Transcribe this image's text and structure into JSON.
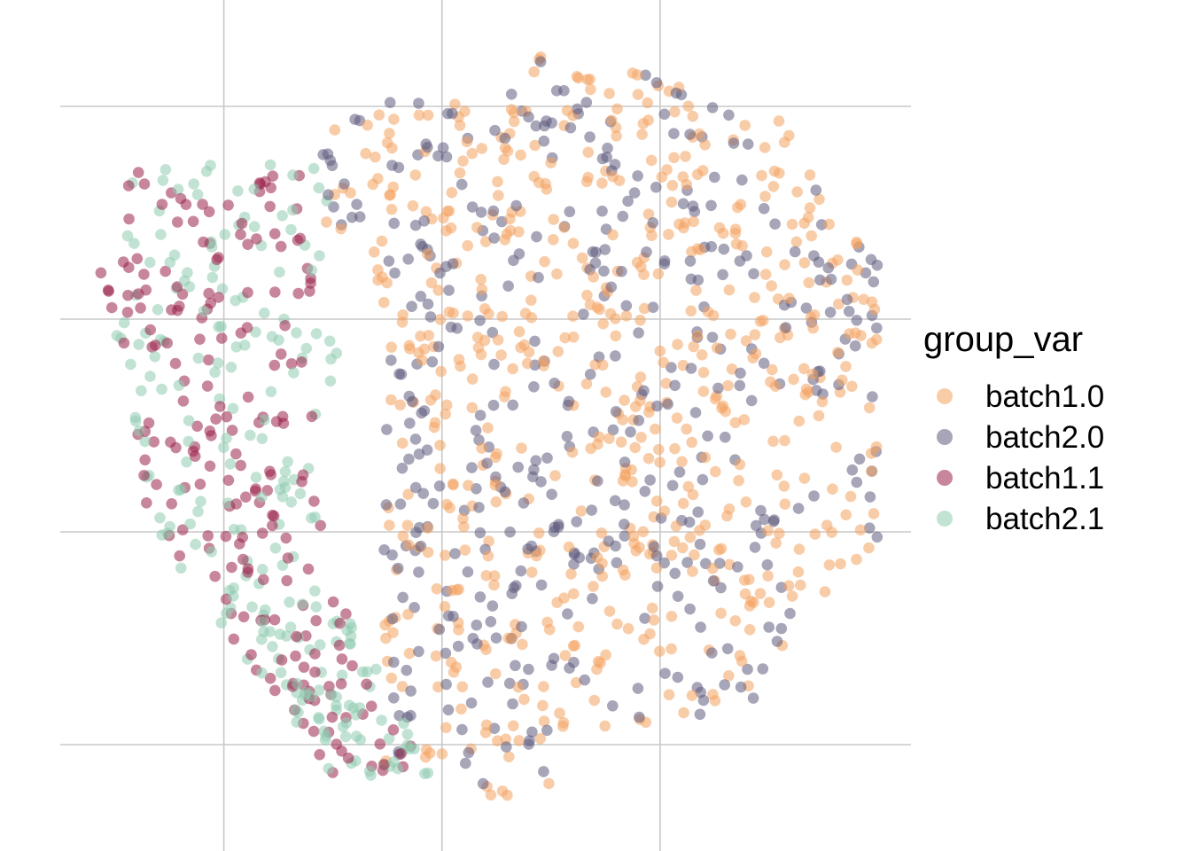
{
  "chart_data": {
    "type": "scatter",
    "title": "",
    "xlabel": "",
    "ylabel": "",
    "xlim": [
      -3.5,
      4.3
    ],
    "ylim": [
      -4.0,
      4.0
    ],
    "x_gridlines": [
      -2,
      0,
      2
    ],
    "y_gridlines": [
      -3,
      -1,
      1,
      3
    ],
    "grid": true,
    "axis_tick_labels_shown": false,
    "legend": {
      "title": "group_var",
      "placement": "right",
      "entries": [
        {
          "name": "batch1.0",
          "color": "#F4A361"
        },
        {
          "name": "batch2.0",
          "color": "#5E5B7D"
        },
        {
          "name": "batch1.1",
          "color": "#9B234A"
        },
        {
          "name": "batch2.1",
          "color": "#8FCCB1"
        }
      ]
    },
    "point_alpha": 0.55,
    "clusters": [
      {
        "series": "batch1.0",
        "n": 620,
        "center": [
          0.0,
          0.4
        ],
        "spread": [
          2.8,
          3.1
        ]
      },
      {
        "series": "batch2.0",
        "n": 430,
        "center": [
          0.2,
          0.2
        ],
        "spread": [
          2.6,
          3.2
        ]
      },
      {
        "series": "batch1.1",
        "n": 210,
        "center": [
          -2.5,
          0.3
        ],
        "spread": [
          1.2,
          2.4
        ]
      },
      {
        "series": "batch2.1",
        "n": 230,
        "center": [
          -2.3,
          0.0
        ],
        "spread": [
          1.2,
          2.6
        ]
      }
    ]
  }
}
